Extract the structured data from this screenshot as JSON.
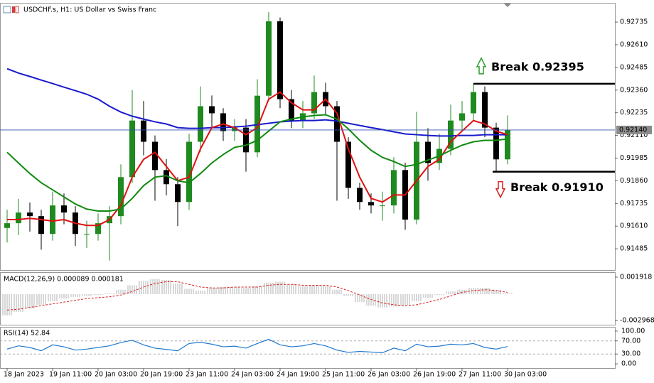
{
  "title": "USDCHF.s, H1:  US Dollar vs Swiss Franc",
  "chart_data": [
    {
      "type": "candlestick",
      "categories": [
        "18 Jan 2023",
        null,
        null,
        null,
        "19 Jan 11:00",
        null,
        null,
        null,
        "20 Jan 03:00",
        null,
        null,
        null,
        "20 Jan 19:00",
        null,
        null,
        null,
        "23 Jan 11:00",
        null,
        null,
        null,
        "24 Jan 03:00",
        null,
        null,
        null,
        "24 Jan 19:00",
        null,
        null,
        null,
        "25 Jan 11:00",
        null,
        null,
        null,
        "26 Jan 03:00",
        null,
        null,
        null,
        "26 Jan 19:00",
        null,
        null,
        null,
        "27 Jan 11:00",
        null,
        null,
        null,
        "30 Jan 03:00"
      ],
      "open": [
        0.916,
        0.91626,
        0.91685,
        0.91665,
        0.91567,
        0.91724,
        0.91685,
        0.91567,
        0.91567,
        0.91626,
        0.91665,
        0.9188,
        0.92192,
        0.92075,
        0.91919,
        0.91841,
        0.91743,
        0.92075,
        0.92271,
        0.92232,
        0.92134,
        0.92153,
        0.92017,
        0.92329,
        0.92739,
        0.9231,
        0.92192,
        0.92232,
        0.92349,
        0.92271,
        0.92075,
        0.91821,
        0.91743,
        0.91724,
        0.91724,
        0.91919,
        0.91646,
        0.92075,
        0.91958,
        0.92036,
        0.92192,
        0.92232,
        0.92349,
        0.92153,
        0.91978
      ],
      "high": [
        0.917,
        0.9176,
        0.9174,
        0.917,
        0.918,
        0.9179,
        0.9172,
        0.9164,
        0.9168,
        0.9172,
        0.9195,
        0.9236,
        0.923,
        0.9211,
        0.9198,
        0.9188,
        0.9212,
        0.9238,
        0.9233,
        0.9226,
        0.922,
        0.922,
        0.9242,
        0.9279,
        0.9276,
        0.9236,
        0.923,
        0.9244,
        0.924,
        0.923,
        0.921,
        0.9185,
        0.9179,
        0.918,
        0.9199,
        0.9196,
        0.9224,
        0.9215,
        0.9212,
        0.9228,
        0.923,
        0.92395,
        0.9238,
        0.9218,
        0.9222
      ],
      "low": [
        0.9152,
        0.9156,
        0.9158,
        0.9148,
        0.9153,
        0.9162,
        0.915,
        0.9149,
        0.9153,
        0.9142,
        0.9162,
        0.9185,
        0.92,
        0.9175,
        0.9178,
        0.9161,
        0.917,
        0.9202,
        0.9215,
        0.9208,
        0.9208,
        0.9191,
        0.9199,
        0.923,
        0.9226,
        0.9215,
        0.9215,
        0.922,
        0.9222,
        0.9175,
        0.9176,
        0.917,
        0.9168,
        0.9164,
        0.9168,
        0.9159,
        0.9162,
        0.9186,
        0.9192,
        0.92,
        0.9213,
        0.9219,
        0.921,
        0.9191,
        0.9195
      ],
      "close": [
        0.91626,
        0.91685,
        0.91665,
        0.91567,
        0.91724,
        0.91685,
        0.91567,
        0.91567,
        0.91626,
        0.91665,
        0.9188,
        0.92192,
        0.92075,
        0.91919,
        0.91841,
        0.91743,
        0.92075,
        0.92271,
        0.92232,
        0.92134,
        0.92153,
        0.92017,
        0.92329,
        0.92739,
        0.9231,
        0.92192,
        0.92232,
        0.92349,
        0.92271,
        0.92075,
        0.91821,
        0.91743,
        0.91724,
        0.91724,
        0.91919,
        0.91646,
        0.92075,
        0.91958,
        0.92036,
        0.92192,
        0.92232,
        0.92349,
        0.92153,
        0.91978,
        0.9214
      ],
      "up_color": "#1f8a1f",
      "down_color": "#000000",
      "series": [
        {
          "color": "#1a1acc",
          "values": [
            0.92478,
            0.92454,
            0.92435,
            0.92415,
            0.92396,
            0.92376,
            0.92357,
            0.92337,
            0.9231,
            0.92271,
            0.92239,
            0.92216,
            0.922,
            0.92185,
            0.92173,
            0.92153,
            0.92149,
            0.92149,
            0.92153,
            0.92153,
            0.92157,
            0.92161,
            0.92169,
            0.92177,
            0.92185,
            0.92189,
            0.92192,
            0.92192,
            0.92196,
            0.92189,
            0.92177,
            0.92165,
            0.92153,
            0.92142,
            0.9213,
            0.92118,
            0.92114,
            0.9211,
            0.92107,
            0.92107,
            0.9211,
            0.9211,
            0.92114,
            0.92114,
            0.92114
          ]
        },
        {
          "color": "#e01010",
          "values": [
            0.91646,
            0.91646,
            0.91653,
            0.91646,
            0.91638,
            0.91646,
            0.91626,
            0.91614,
            0.91614,
            0.91646,
            0.91724,
            0.9188,
            0.91978,
            0.92017,
            0.91939,
            0.9186,
            0.9188,
            0.92036,
            0.92153,
            0.92173,
            0.92153,
            0.92114,
            0.92153,
            0.9231,
            0.92349,
            0.9229,
            0.92251,
            0.92251,
            0.9231,
            0.92232,
            0.92036,
            0.9188,
            0.91763,
            0.91743,
            0.91782,
            0.91782,
            0.9186,
            0.91939,
            0.91978,
            0.92075,
            0.92134,
            0.92192,
            0.92173,
            0.92134,
            0.92114
          ]
        },
        {
          "color": "#108a10",
          "values": [
            0.92017,
            0.91958,
            0.919,
            0.91849,
            0.9181,
            0.91771,
            0.91732,
            0.91704,
            0.91693,
            0.91693,
            0.91704,
            0.91763,
            0.91833,
            0.9188,
            0.91888,
            0.9186,
            0.91849,
            0.919,
            0.91958,
            0.92005,
            0.92044,
            0.92056,
            0.92083,
            0.92134,
            0.92185,
            0.922,
            0.92212,
            0.9222,
            0.92224,
            0.922,
            0.92146,
            0.92083,
            0.92028,
            0.91989,
            0.91966,
            0.91939,
            0.9195,
            0.91974,
            0.91997,
            0.92028,
            0.92056,
            0.92075,
            0.92083,
            0.92083,
            0.92091
          ]
        }
      ],
      "ylim": [
        0.91368,
        0.92837
      ],
      "yticks": [
        0.92735,
        {
          "value": 0.9261,
          "label": "0.92610"
        },
        0.92485,
        {
          "value": 0.9236,
          "label": "0.92360"
        },
        0.92235,
        {
          "value": 0.9211,
          "label": "0.92110"
        },
        0.91985,
        {
          "value": 0.9186,
          "label": "0.91860"
        },
        0.91735,
        {
          "value": 0.9161,
          "label": "0.91610"
        },
        0.91485
      ],
      "current_price": {
        "value": 0.9214,
        "label": "0.92140"
      },
      "annotations": [
        {
          "text": "Break 0.92395",
          "value": 0.92395,
          "direction": "up",
          "color": "#2a9d2a"
        },
        {
          "text": "Break 0.91910",
          "value": 0.9191,
          "direction": "down",
          "color": "#d42020"
        }
      ]
    },
    {
      "type": "macd",
      "label": "MACD(12,26,9) 0.000089 0.000181",
      "histogram": [
        -0.0024,
        -0.002,
        -0.0016,
        -0.0012,
        -0.0008,
        -0.0005,
        -0.0003,
        -0.0002,
        -0.0001,
        0.0001,
        0.0005,
        0.001,
        0.0015,
        0.0017,
        0.0016,
        0.0012,
        0.0006,
        0.0004,
        0.0007,
        0.0008,
        0.0008,
        0.0007,
        0.0009,
        0.0013,
        0.0014,
        0.0011,
        0.0009,
        0.001,
        0.0009,
        0.0005,
        -0.0002,
        -0.0009,
        -0.0013,
        -0.0015,
        -0.0014,
        -0.0013,
        -0.0008,
        -0.0004,
        -0.0001,
        0.0003,
        0.0005,
        0.0007,
        0.0007,
        0.0005,
        0.0001
      ],
      "signal": [
        -0.0018,
        -0.0017,
        -0.0015,
        -0.0013,
        -0.0011,
        -0.0009,
        -0.0007,
        -0.0005,
        -0.0004,
        -0.0003,
        -0.0001,
        0.0003,
        0.0008,
        0.0012,
        0.0014,
        0.0014,
        0.0011,
        0.0008,
        0.0007,
        0.0007,
        0.0008,
        0.0008,
        0.0008,
        0.001,
        0.0011,
        0.0011,
        0.001,
        0.001,
        0.001,
        0.0008,
        0.0004,
        -0.0001,
        -0.0006,
        -0.001,
        -0.0012,
        -0.0013,
        -0.0012,
        -0.0009,
        -0.0006,
        -0.0002,
        0.0002,
        0.0004,
        0.0005,
        0.0004,
        0.0002
      ],
      "histogram_color": "#b0b0b0",
      "signal_color": "#d42020",
      "ylim": [
        -0.003449,
        0.002399
      ],
      "yticks": [
        0.001918,
        -0.002968
      ]
    },
    {
      "type": "rsi",
      "label": "RSI(14) 52.84",
      "values": [
        45,
        55,
        50,
        40,
        58,
        52,
        42,
        45,
        50,
        55,
        65,
        72,
        58,
        48,
        44,
        40,
        62,
        66,
        60,
        52,
        54,
        48,
        62,
        75,
        58,
        52,
        55,
        62,
        55,
        42,
        35,
        38,
        36,
        34,
        48,
        40,
        60,
        52,
        54,
        60,
        58,
        62,
        50,
        45,
        52.84
      ],
      "color": "#1e78d0",
      "ylim": [
        -12.8,
        110.6
      ],
      "yticks": [
        {
          "value": 100,
          "label": "100.00"
        },
        {
          "value": 70,
          "label": "70.00"
        },
        {
          "value": 30,
          "label": "30.00"
        },
        {
          "value": 0,
          "label": "0.00"
        }
      ],
      "levels": [
        70,
        30
      ]
    }
  ]
}
